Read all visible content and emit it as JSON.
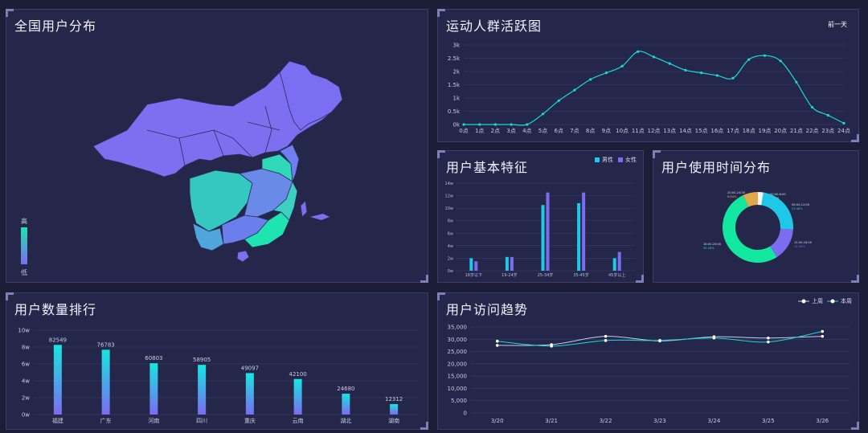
{
  "map_panel": {
    "title": "全国用户分布",
    "legend_high": "高",
    "legend_low": "低",
    "colors": {
      "high": "#1fe3b0",
      "low": "#7b6cf0",
      "base": "#7c6ff0"
    }
  },
  "activity_panel": {
    "title": "运动人群活跃图",
    "badge": "前一天",
    "chart_data": {
      "type": "line",
      "x": [
        "0点",
        "1点",
        "2点",
        "3点",
        "4点",
        "5点",
        "6点",
        "7点",
        "8点",
        "9点",
        "10点",
        "11点",
        "12点",
        "13点",
        "14点",
        "15点",
        "16点",
        "17点",
        "18点",
        "19点",
        "20点",
        "21点",
        "22点",
        "23点",
        "24点"
      ],
      "values": [
        0,
        0,
        0,
        0,
        0,
        400,
        900,
        1300,
        1700,
        1950,
        2200,
        2750,
        2550,
        2300,
        2050,
        1950,
        1850,
        1750,
        2450,
        2600,
        2400,
        1600,
        650,
        350,
        50
      ],
      "y_ticks": [
        "0k",
        "0.5k",
        "1k",
        "1.5k",
        "2k",
        "2.5k",
        "3k"
      ],
      "ylim": [
        0,
        3000
      ],
      "color": "#1ad8d8"
    }
  },
  "features_panel": {
    "title": "用户基本特征",
    "chart_data": {
      "type": "bar",
      "categories": [
        "18岁以下",
        "19-24岁",
        "25-34岁",
        "35-45岁",
        "45岁以上"
      ],
      "series": [
        {
          "name": "男性",
          "values": [
            2,
            2.2,
            10.5,
            10.8,
            2
          ]
        },
        {
          "name": "女性",
          "values": [
            1.5,
            2.2,
            12.5,
            12.5,
            3
          ]
        }
      ],
      "y_ticks": [
        "0w",
        "2w",
        "4w",
        "6w",
        "8w",
        "10w",
        "12w",
        "14w"
      ],
      "ylim": [
        0,
        14
      ],
      "colors": [
        "#1ec8e6",
        "#7b6cf0"
      ]
    }
  },
  "time_panel": {
    "title": "用户使用时间分布",
    "chart_data": {
      "type": "pie",
      "slices": [
        {
          "label": "00:00-6:00",
          "pct": "2.50%",
          "value": 2.5,
          "color": "#f5f5f5"
        },
        {
          "label": "06:00-12:00",
          "pct": "23.48%",
          "value": 23.48,
          "color": "#1ec8e6"
        },
        {
          "label": "12:00-18:00",
          "pct": "15.00%",
          "value": 15.0,
          "color": "#7b6cf0"
        },
        {
          "label": "18:00-20:00",
          "pct": "52.18%",
          "value": 52.18,
          "color": "#12e8a0"
        },
        {
          "label": "20:00-24:00",
          "pct": "6.84%",
          "value": 6.84,
          "color": "#e0a84c"
        }
      ]
    }
  },
  "ranking_panel": {
    "title": "用户数量排行",
    "chart_data": {
      "type": "bar",
      "categories": [
        "福建",
        "广东",
        "河南",
        "四川",
        "重庆",
        "云南",
        "湖北",
        "湖南"
      ],
      "values": [
        82549,
        76783,
        60803,
        58905,
        49097,
        42100,
        24680,
        12312
      ],
      "y_ticks": [
        "0w",
        "2w",
        "4w",
        "6w",
        "8w",
        "10w"
      ],
      "ylim": [
        0,
        100000
      ],
      "colors": {
        "top": "#16e6e0",
        "bottom": "#7b6cf0"
      }
    }
  },
  "visits_panel": {
    "title": "用户访问趋势",
    "chart_data": {
      "type": "line",
      "x": [
        "3/20",
        "3/21",
        "3/22",
        "3/23",
        "3/24",
        "3/25",
        "3/26"
      ],
      "series": [
        {
          "name": "上周",
          "values": [
            27500,
            27800,
            31200,
            29300,
            31000,
            30500,
            31200
          ],
          "color": "#c8cae6"
        },
        {
          "name": "本周",
          "values": [
            29200,
            27200,
            29500,
            29500,
            30500,
            28900,
            33200
          ],
          "color": "#1ad8d8"
        }
      ],
      "y_ticks": [
        "0",
        "5,000",
        "10,000",
        "15,000",
        "20,000",
        "25,000",
        "30,000",
        "35,000"
      ],
      "ylim": [
        0,
        35000
      ]
    }
  }
}
